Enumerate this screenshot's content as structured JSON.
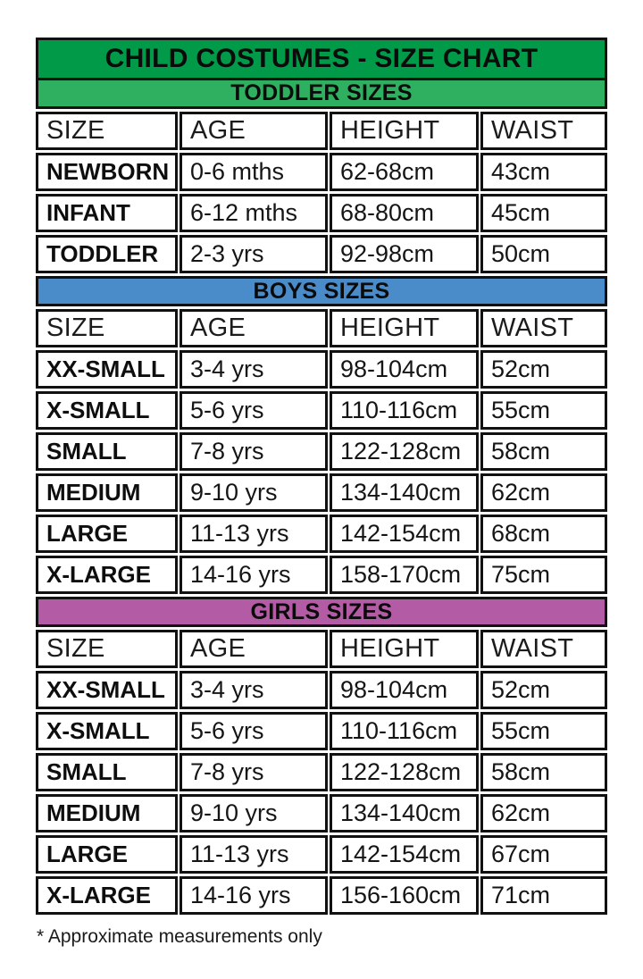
{
  "chart_data": {
    "type": "table",
    "title": "CHILD COSTUMES - SIZE CHART",
    "columns": [
      "SIZE",
      "AGE",
      "HEIGHT",
      "WAIST"
    ],
    "sections": [
      {
        "label": "TODDLER SIZES",
        "color": "#2FAF60",
        "rows": [
          [
            "NEWBORN",
            "0-6 mths",
            "62-68cm",
            "43cm"
          ],
          [
            "INFANT",
            "6-12 mths",
            "68-80cm",
            "45cm"
          ],
          [
            "TODDLER",
            "2-3 yrs",
            "92-98cm",
            "50cm"
          ]
        ]
      },
      {
        "label": "BOYS SIZES",
        "color": "#4A8CC9",
        "rows": [
          [
            "XX-SMALL",
            "3-4 yrs",
            "98-104cm",
            "52cm"
          ],
          [
            "X-SMALL",
            "5-6 yrs",
            "110-116cm",
            "55cm"
          ],
          [
            "SMALL",
            "7-8 yrs",
            "122-128cm",
            "58cm"
          ],
          [
            "MEDIUM",
            "9-10 yrs",
            "134-140cm",
            "62cm"
          ],
          [
            "LARGE",
            "11-13 yrs",
            "142-154cm",
            "68cm"
          ],
          [
            "X-LARGE",
            "14-16 yrs",
            "158-170cm",
            "75cm"
          ]
        ]
      },
      {
        "label": "GIRLS SIZES",
        "color": "#B45BA5",
        "rows": [
          [
            "XX-SMALL",
            "3-4 yrs",
            "98-104cm",
            "52cm"
          ],
          [
            "X-SMALL",
            "5-6 yrs",
            "110-116cm",
            "55cm"
          ],
          [
            "SMALL",
            "7-8 yrs",
            "122-128cm",
            "58cm"
          ],
          [
            "MEDIUM",
            "9-10 yrs",
            "134-140cm",
            "62cm"
          ],
          [
            "LARGE",
            "11-13 yrs",
            "142-154cm",
            "67cm"
          ],
          [
            "X-LARGE",
            "14-16 yrs",
            "156-160cm",
            "71cm"
          ]
        ]
      }
    ],
    "footnote": "* Approximate measurements only",
    "colors": {
      "title_bar_green": "#009A49",
      "toddler_bar_green": "#2FAF60",
      "boys_bar_blue": "#4A8CC9",
      "girls_bar_purple": "#B45BA5",
      "border_black": "#111111"
    }
  }
}
